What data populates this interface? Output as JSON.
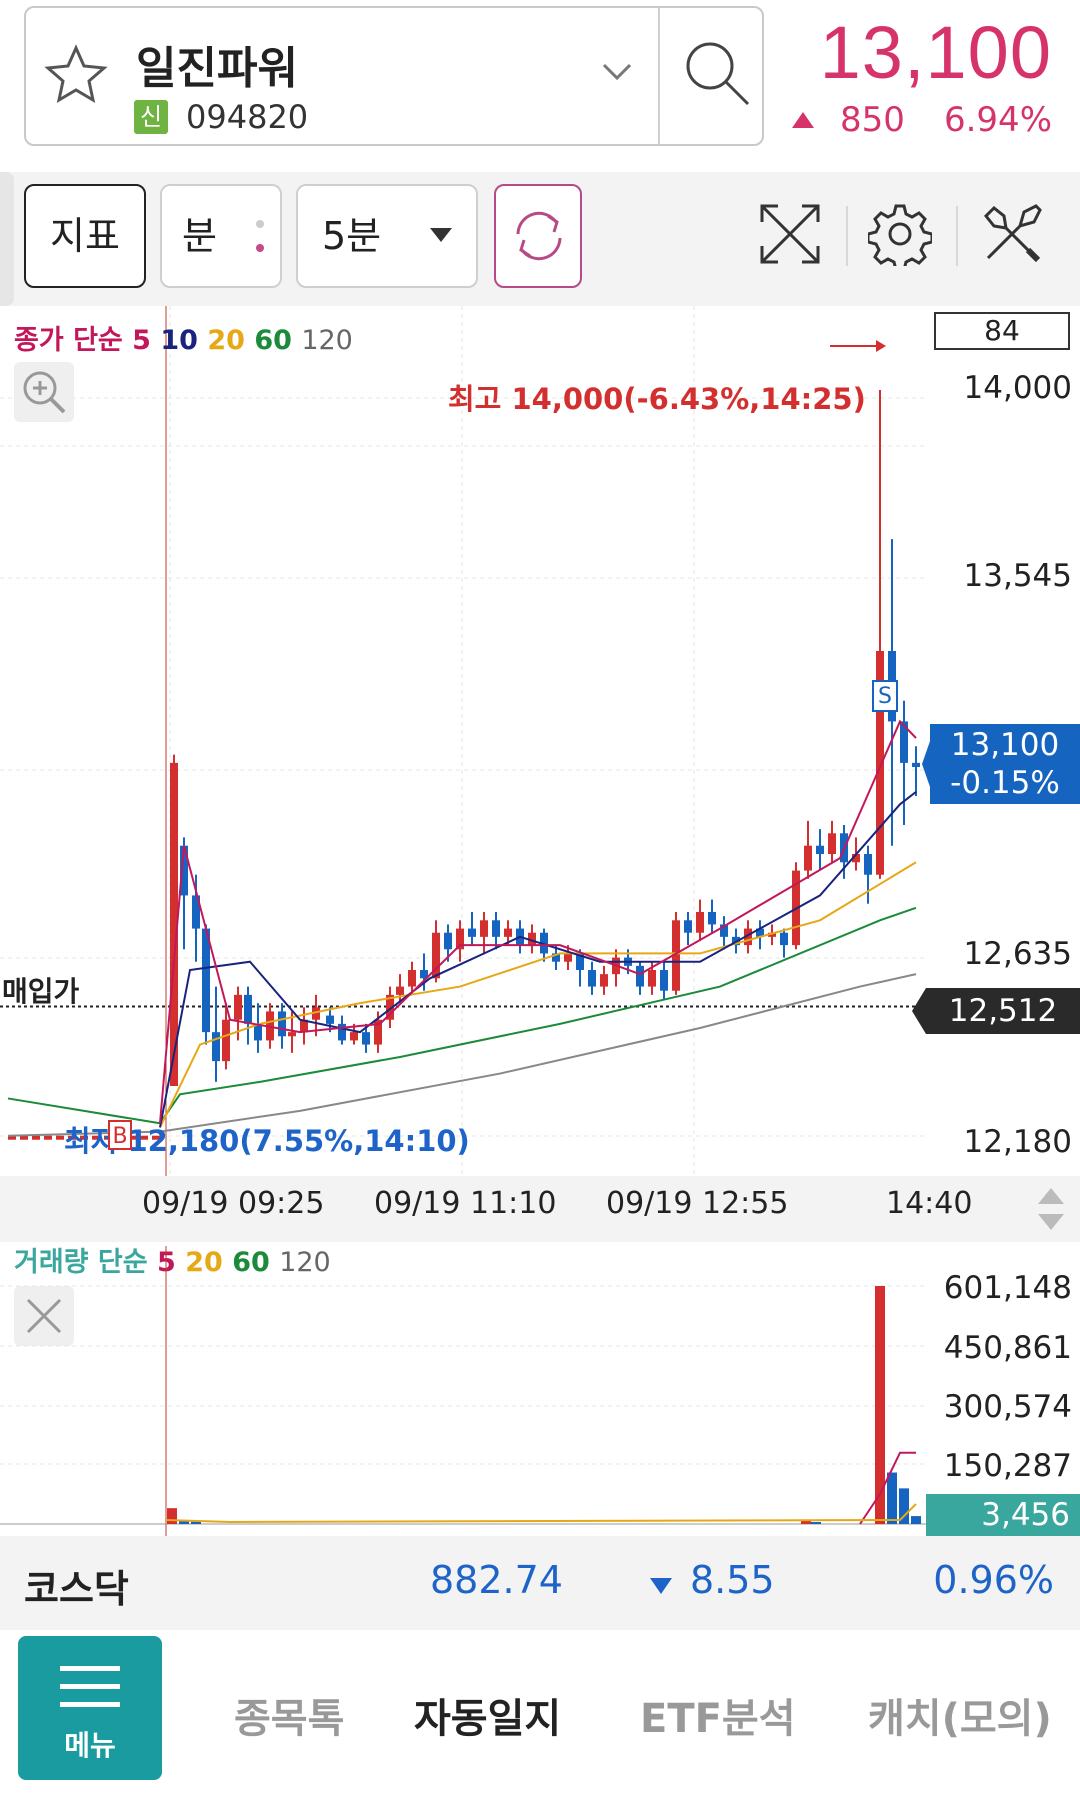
{
  "header": {
    "stock_name": "일진파워",
    "badge": "신",
    "stock_code": "094820",
    "price": "13,100",
    "change": "850",
    "change_pct": "6.94%",
    "accent_color": "#d6336c"
  },
  "toolbar": {
    "indicator_label": "지표",
    "minute_label": "분",
    "interval_label": "5분",
    "icons": [
      "refresh-icon",
      "expand-icon",
      "gear-icon",
      "tools-icon"
    ]
  },
  "chart": {
    "ma_legend": {
      "prefix": "종가 단순",
      "p5": "5",
      "p10": "10",
      "p20": "20",
      "p60": "60",
      "p120": "120"
    },
    "count_box": "84",
    "y_ticks": [
      "14,000",
      "13,545",
      "12,635",
      "12,180"
    ],
    "current_price": "13,100",
    "current_pct": "-0.15%",
    "avg_price": "12,512",
    "avg_label": "매입가",
    "high_label": "최고 14,000(-6.43%,14:25)",
    "low_label": "최저 12,180(7.55%,14:10)",
    "buy_marker": "B",
    "sell_marker": "S",
    "x_ticks": [
      "09/19 09:25",
      "09/19 11:10",
      "09/19 12:55",
      "14:40"
    ]
  },
  "volume": {
    "legend": {
      "prefix": "거래량 단순",
      "p5": "5",
      "p20": "20",
      "p60": "60",
      "p120": "120"
    },
    "y_ticks": [
      "601,148",
      "450,861",
      "300,574",
      "150,287"
    ],
    "current": "3,456"
  },
  "index_bar": {
    "name": "코스닥",
    "value": "882.74",
    "change": "8.55",
    "pct": "0.96%"
  },
  "nav": {
    "menu_label": "메뉴",
    "items": [
      "종목톡",
      "자동일지",
      "ETF분석",
      "캐치(모의)"
    ]
  },
  "chart_data": {
    "type": "candlestick",
    "y_range": [
      12180,
      14000
    ],
    "high": 14000,
    "low": 12180,
    "current": 13100,
    "avg_buy": 12512,
    "volume_range": [
      0,
      601148
    ]
  }
}
